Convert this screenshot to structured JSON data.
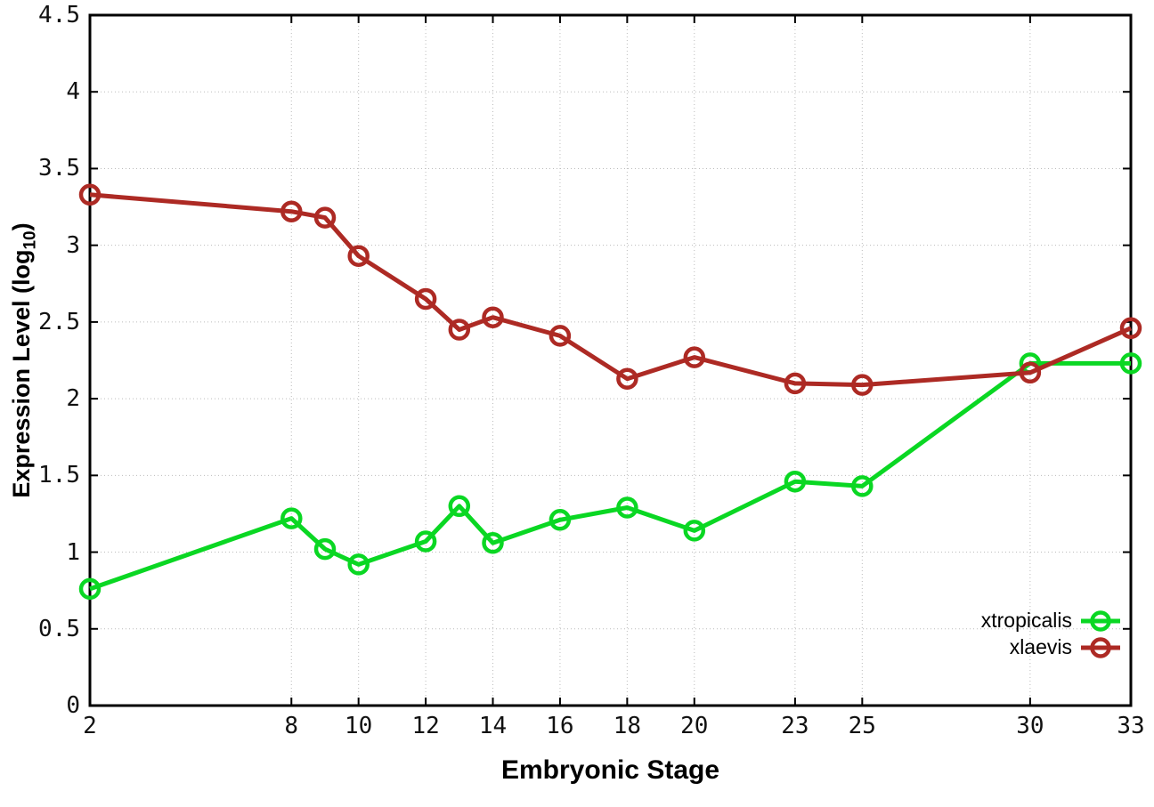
{
  "chart_data": {
    "type": "line",
    "title": "",
    "xlabel": "Embryonic Stage",
    "ylabel_pre": "Expression Level (log",
    "ylabel_sub": "10",
    "ylabel_post": ")",
    "xlim": [
      2,
      33
    ],
    "ylim": [
      0,
      4.5
    ],
    "grid": true,
    "legend_position": "bottom-right",
    "x_tick_values": [
      2,
      8,
      10,
      12,
      14,
      16,
      18,
      20,
      23,
      25,
      30,
      33
    ],
    "x_tick_labels": [
      "2",
      "8",
      "10",
      "12",
      "14",
      "16",
      "18",
      "20",
      "23",
      "25",
      "30",
      "33"
    ],
    "y_tick_values": [
      0,
      0.5,
      1,
      1.5,
      2,
      2.5,
      3,
      3.5,
      4,
      4.5
    ],
    "y_tick_labels": [
      "0",
      "0.5",
      "1",
      "1.5",
      "2",
      "2.5",
      "3",
      "3.5",
      "4",
      "4.5"
    ],
    "series": [
      {
        "name": "xtropicalis",
        "color": "#0ad723",
        "points": [
          [
            2,
            0.76
          ],
          [
            8,
            1.22
          ],
          [
            9,
            1.02
          ],
          [
            10,
            0.92
          ],
          [
            12,
            1.07
          ],
          [
            13,
            1.3
          ],
          [
            14,
            1.06
          ],
          [
            16,
            1.21
          ],
          [
            18,
            1.29
          ],
          [
            20,
            1.14
          ],
          [
            23,
            1.46
          ],
          [
            25,
            1.43
          ],
          [
            30,
            2.23
          ],
          [
            33,
            2.23
          ]
        ]
      },
      {
        "name": "xlaevis",
        "color": "#ad2a24",
        "points": [
          [
            2,
            3.33
          ],
          [
            8,
            3.22
          ],
          [
            9,
            3.18
          ],
          [
            10,
            2.93
          ],
          [
            12,
            2.65
          ],
          [
            13,
            2.45
          ],
          [
            14,
            2.53
          ],
          [
            16,
            2.41
          ],
          [
            18,
            2.13
          ],
          [
            20,
            2.27
          ],
          [
            23,
            2.1
          ],
          [
            25,
            2.09
          ],
          [
            30,
            2.17
          ],
          [
            33,
            2.46
          ]
        ]
      }
    ]
  }
}
